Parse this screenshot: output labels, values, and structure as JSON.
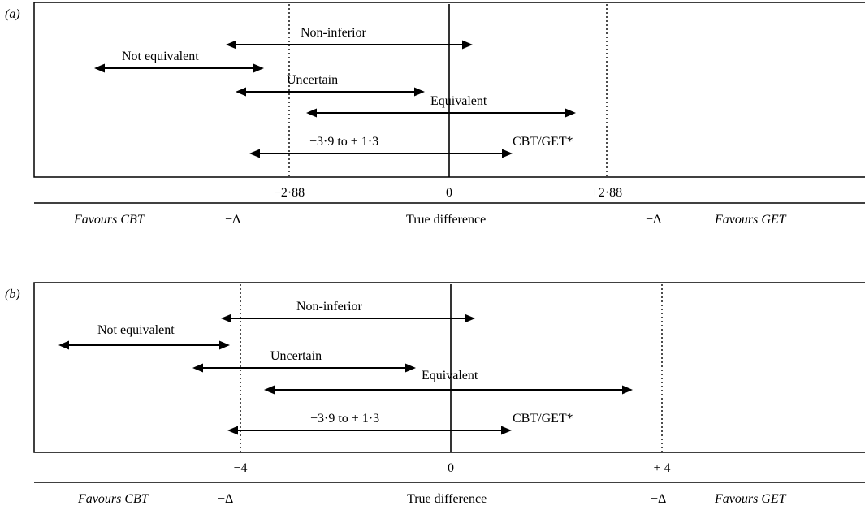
{
  "panels": [
    {
      "panel_label": "(a)",
      "labels": {
        "non_inferior": "Non-inferior",
        "not_equivalent": "Not equivalent",
        "uncertain": "Uncertain",
        "equivalent": "Equivalent",
        "ci": "−3·9 to + 1·3",
        "cbt_get": "CBT/GET*"
      },
      "ticks": {
        "left": "−2·88",
        "center": "0",
        "right": "+2·88"
      },
      "footer": {
        "favours_cbt": "Favours CBT",
        "delta_left": "−Δ",
        "true_difference": "True difference",
        "delta_right": "−Δ",
        "favours_get": "Favours GET"
      }
    },
    {
      "panel_label": "(b)",
      "labels": {
        "non_inferior": "Non-inferior",
        "not_equivalent": "Not equivalent",
        "uncertain": "Uncertain",
        "equivalent": "Equivalent",
        "ci": "−3·9 to + 1·3",
        "cbt_get": "CBT/GET*"
      },
      "ticks": {
        "left": "−4",
        "center": "0",
        "right": "+ 4"
      },
      "footer": {
        "favours_cbt": "Favours CBT",
        "delta_left": "−Δ",
        "true_difference": "True difference",
        "delta_right": "−Δ",
        "favours_get": "Favours GET"
      }
    }
  ]
}
